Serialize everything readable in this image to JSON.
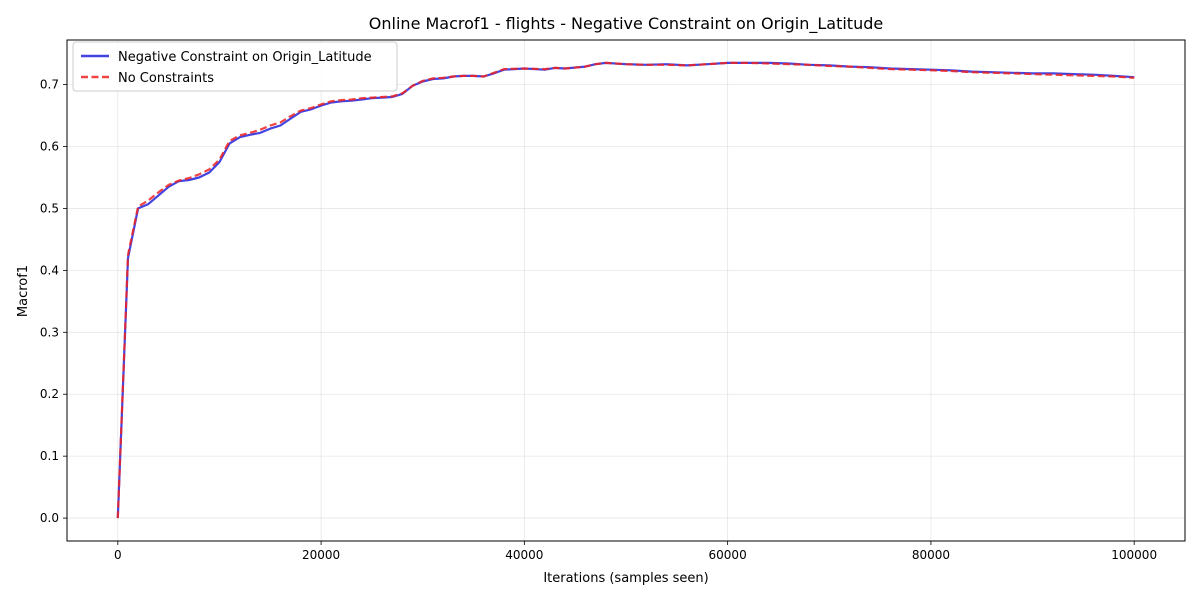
{
  "chart_data": {
    "type": "line",
    "title": "Online Macrof1 - flights - Negative Constraint on Origin_Latitude",
    "xlabel": "Iterations (samples seen)",
    "ylabel": "Macrof1",
    "xlim": [
      -5000,
      105000
    ],
    "ylim": [
      -0.037,
      0.772
    ],
    "xticks": [
      0,
      20000,
      40000,
      60000,
      80000,
      100000
    ],
    "yticks": [
      0.0,
      0.1,
      0.2,
      0.3,
      0.4,
      0.5,
      0.6,
      0.7
    ],
    "grid": true,
    "legend_position": "top-left",
    "series": [
      {
        "name": "Negative Constraint on Origin_Latitude",
        "color": "#2222dd",
        "style": "solid",
        "x": [
          0,
          1000,
          2000,
          3000,
          4000,
          5000,
          6000,
          7000,
          8000,
          9000,
          10000,
          11000,
          12000,
          13000,
          14000,
          15000,
          16000,
          17000,
          18000,
          19000,
          20000,
          21000,
          22000,
          23000,
          24000,
          25000,
          26000,
          27000,
          28000,
          29000,
          30000,
          31000,
          32000,
          33000,
          34000,
          35000,
          36000,
          37000,
          38000,
          40000,
          42000,
          43000,
          44000,
          46000,
          47000,
          48000,
          50000,
          52000,
          54000,
          56000,
          58000,
          60000,
          62000,
          64000,
          66000,
          68000,
          70000,
          72000,
          74000,
          76000,
          78000,
          80000,
          82000,
          84000,
          86000,
          88000,
          90000,
          92000,
          94000,
          96000,
          98000,
          100000
        ],
        "y": [
          0.0,
          0.42,
          0.5,
          0.507,
          0.521,
          0.535,
          0.544,
          0.546,
          0.55,
          0.558,
          0.575,
          0.605,
          0.615,
          0.619,
          0.622,
          0.629,
          0.634,
          0.645,
          0.656,
          0.66,
          0.666,
          0.671,
          0.673,
          0.674,
          0.676,
          0.678,
          0.679,
          0.68,
          0.685,
          0.698,
          0.705,
          0.709,
          0.71,
          0.713,
          0.714,
          0.714,
          0.713,
          0.718,
          0.724,
          0.726,
          0.724,
          0.727,
          0.726,
          0.729,
          0.733,
          0.735,
          0.733,
          0.732,
          0.733,
          0.731,
          0.733,
          0.735,
          0.735,
          0.735,
          0.734,
          0.732,
          0.731,
          0.729,
          0.728,
          0.726,
          0.725,
          0.724,
          0.723,
          0.721,
          0.72,
          0.719,
          0.718,
          0.718,
          0.717,
          0.716,
          0.714,
          0.712
        ]
      },
      {
        "name": "No Constraints",
        "color": "#ee2222",
        "style": "dashed",
        "x": [
          0,
          1000,
          2000,
          3000,
          4000,
          5000,
          6000,
          7000,
          8000,
          9000,
          10000,
          11000,
          12000,
          13000,
          14000,
          15000,
          16000,
          17000,
          18000,
          19000,
          20000,
          21000,
          22000,
          23000,
          24000,
          25000,
          26000,
          27000,
          28000,
          29000,
          30000,
          31000,
          32000,
          33000,
          34000,
          35000,
          36000,
          37000,
          38000,
          40000,
          42000,
          43000,
          44000,
          46000,
          47000,
          48000,
          50000,
          52000,
          54000,
          56000,
          58000,
          60000,
          62000,
          64000,
          66000,
          68000,
          70000,
          72000,
          74000,
          76000,
          78000,
          80000,
          82000,
          84000,
          86000,
          88000,
          90000,
          92000,
          94000,
          96000,
          98000,
          100000
        ],
        "y": [
          0.0,
          0.425,
          0.503,
          0.513,
          0.526,
          0.538,
          0.545,
          0.549,
          0.555,
          0.563,
          0.579,
          0.609,
          0.618,
          0.622,
          0.627,
          0.634,
          0.639,
          0.649,
          0.658,
          0.662,
          0.668,
          0.673,
          0.675,
          0.676,
          0.678,
          0.679,
          0.68,
          0.681,
          0.686,
          0.698,
          0.706,
          0.71,
          0.711,
          0.713,
          0.714,
          0.714,
          0.713,
          0.719,
          0.725,
          0.726,
          0.725,
          0.727,
          0.726,
          0.729,
          0.733,
          0.735,
          0.733,
          0.732,
          0.732,
          0.731,
          0.733,
          0.735,
          0.735,
          0.734,
          0.733,
          0.732,
          0.73,
          0.729,
          0.727,
          0.725,
          0.724,
          0.723,
          0.722,
          0.72,
          0.719,
          0.718,
          0.717,
          0.716,
          0.715,
          0.714,
          0.713,
          0.711
        ]
      }
    ]
  }
}
